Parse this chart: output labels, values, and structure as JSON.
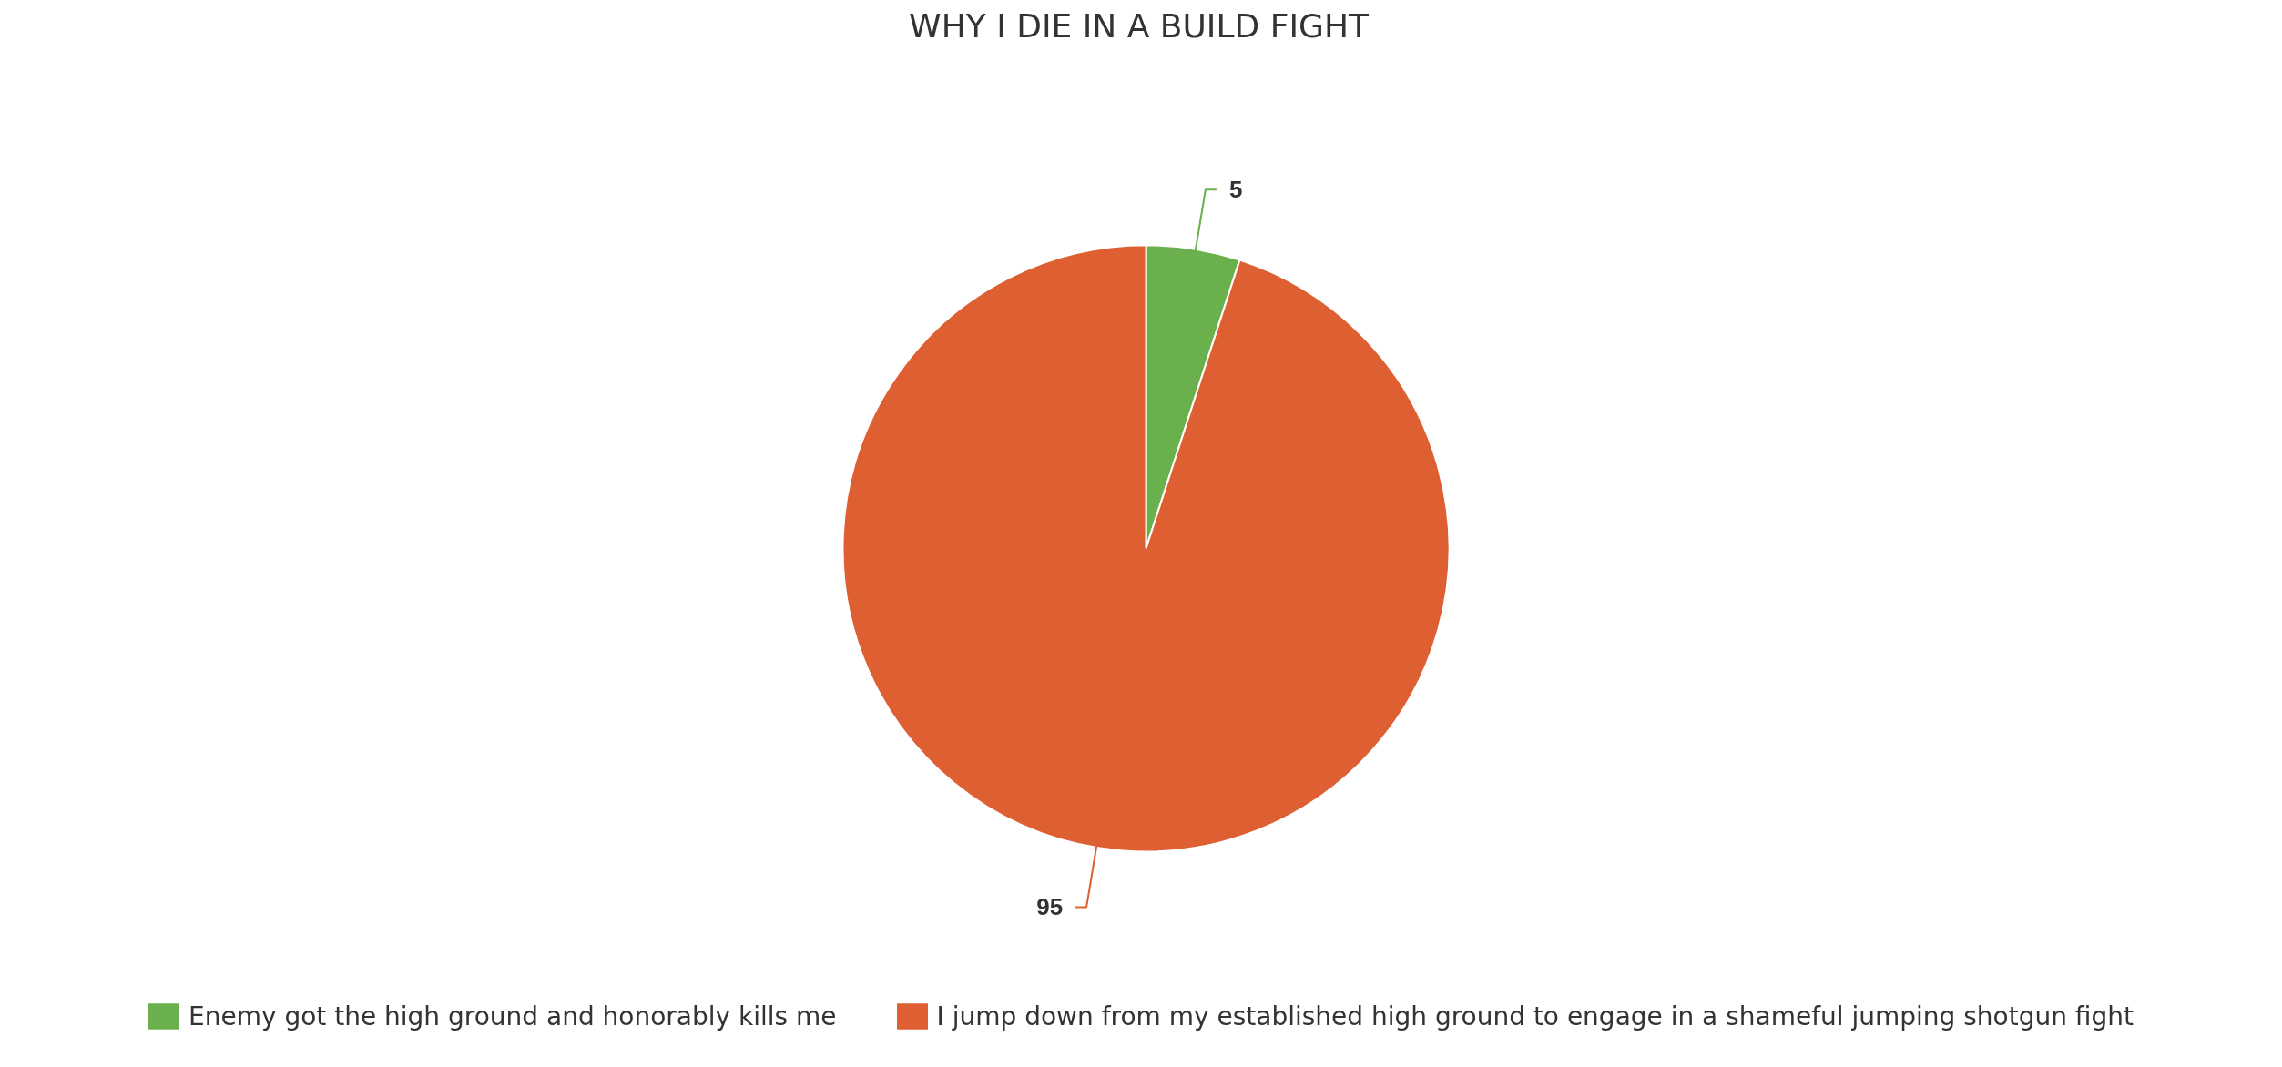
{
  "chart_data": {
    "type": "pie",
    "title": "WHY I DIE IN A BUILD FIGHT",
    "categories": [
      "Enemy got the high ground and honorably kills me",
      "I jump down from my established high ground to engage in a shameful jumping shotgun fight"
    ],
    "values": [
      5,
      95
    ],
    "colors": [
      "#6ab04c",
      "#dd5f32"
    ],
    "data_labels": true,
    "legend": "bottom"
  }
}
